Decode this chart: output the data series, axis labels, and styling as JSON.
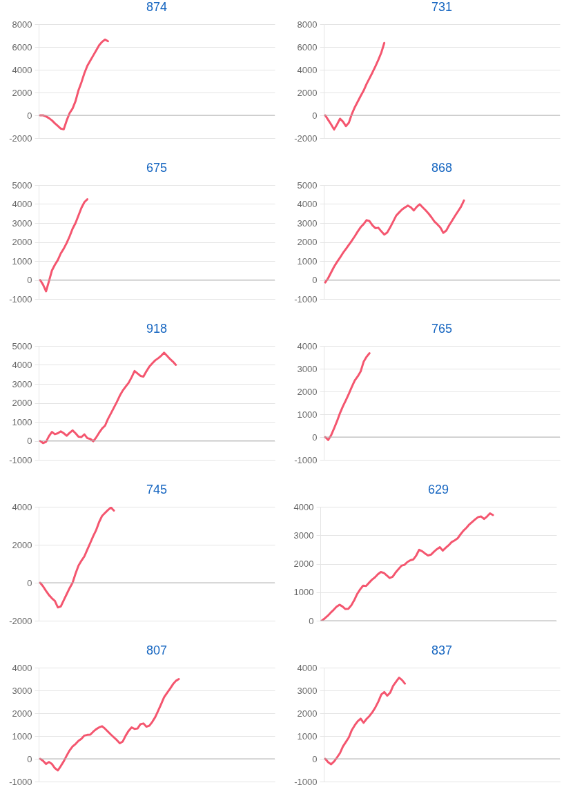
{
  "chart_data": [
    {
      "type": "line",
      "title": "874",
      "grid": "y",
      "ylim": [
        -2000,
        8000
      ],
      "yticks": [
        -2000,
        0,
        2000,
        4000,
        6000,
        8000
      ],
      "ref_lines": [
        {
          "axis": "y",
          "value": 0,
          "color": "#b4b4b4"
        }
      ],
      "categories": [
        null,
        null,
        null,
        null,
        null,
        null,
        null,
        null,
        null,
        null,
        null,
        null,
        null,
        null,
        null,
        null,
        null,
        null,
        null,
        null,
        null,
        null,
        null,
        null,
        null,
        null,
        null,
        null,
        null,
        null,
        null,
        null,
        null,
        null,
        null,
        null,
        null,
        null,
        null,
        null,
        null,
        null,
        null,
        null,
        null,
        null,
        null,
        null,
        null,
        null,
        null,
        null,
        null,
        null,
        null,
        null,
        null,
        null,
        null,
        null,
        null,
        null,
        null,
        null,
        null,
        null,
        null,
        null,
        null,
        null,
        null,
        null,
        null,
        null,
        null,
        null,
        null,
        null,
        null,
        null
      ],
      "series": [
        {
          "color": "#f4566f",
          "values": [
            0,
            0,
            -100,
            -250,
            -450,
            -700,
            -930,
            -1170,
            -1230,
            -450,
            200,
            600,
            1250,
            2200,
            2900,
            3700,
            4350,
            4800,
            5250,
            5700,
            6150,
            6450,
            6650,
            6500,
            null,
            null,
            null,
            null,
            null,
            null,
            null,
            null,
            null,
            null,
            null,
            null,
            null,
            null,
            null,
            null,
            null,
            null,
            null,
            null,
            null,
            null,
            null,
            null,
            null,
            null,
            null,
            null,
            null,
            null,
            null,
            null,
            null,
            null,
            null,
            null,
            null,
            null,
            null,
            null,
            null,
            null,
            null,
            null,
            null,
            null,
            null,
            null,
            null,
            null,
            null,
            null,
            null,
            null,
            null,
            null
          ]
        }
      ]
    },
    {
      "type": "line",
      "title": "731",
      "grid": "y",
      "ylim": [
        -2000,
        8000
      ],
      "yticks": [
        -2000,
        0,
        2000,
        4000,
        6000,
        8000
      ],
      "ref_lines": [
        {
          "axis": "y",
          "value": 0,
          "color": "#b4b4b4"
        }
      ],
      "categories": [
        null,
        null,
        null,
        null,
        null,
        null,
        null,
        null,
        null,
        null,
        null,
        null,
        null,
        null,
        null,
        null,
        null,
        null,
        null,
        null,
        null,
        null,
        null,
        null,
        null,
        null,
        null,
        null,
        null,
        null,
        null,
        null,
        null,
        null,
        null,
        null,
        null,
        null,
        null,
        null,
        null,
        null,
        null,
        null,
        null,
        null,
        null,
        null,
        null,
        null,
        null,
        null,
        null,
        null,
        null,
        null,
        null,
        null,
        null,
        null,
        null,
        null,
        null,
        null,
        null,
        null,
        null,
        null,
        null,
        null,
        null,
        null,
        null,
        null,
        null,
        null,
        null,
        null,
        null,
        null
      ],
      "series": [
        {
          "color": "#f4566f",
          "values": [
            0,
            -400,
            -800,
            -1250,
            -800,
            -300,
            -550,
            -950,
            -650,
            100,
            700,
            1200,
            1700,
            2160,
            2750,
            3250,
            3760,
            4300,
            4870,
            5500,
            6350,
            null,
            null,
            null,
            null,
            null,
            null,
            null,
            null,
            null,
            null,
            null,
            null,
            null,
            null,
            null,
            null,
            null,
            null,
            null,
            null,
            null,
            null,
            null,
            null,
            null,
            null,
            null,
            null,
            null,
            null,
            null,
            null,
            null,
            null,
            null,
            null,
            null,
            null,
            null,
            null,
            null,
            null,
            null,
            null,
            null,
            null,
            null,
            null,
            null,
            null,
            null,
            null,
            null,
            null,
            null,
            null,
            null,
            null,
            null
          ]
        }
      ]
    },
    {
      "type": "line",
      "title": "675",
      "grid": "y",
      "ylim": [
        -1000,
        5000
      ],
      "yticks": [
        -1000,
        0,
        1000,
        2000,
        3000,
        4000,
        5000
      ],
      "ref_lines": [
        {
          "axis": "y",
          "value": 0,
          "color": "#b4b4b4"
        }
      ],
      "categories": [
        null,
        null,
        null,
        null,
        null,
        null,
        null,
        null,
        null,
        null,
        null,
        null,
        null,
        null,
        null,
        null,
        null,
        null,
        null,
        null,
        null,
        null,
        null,
        null,
        null,
        null,
        null,
        null,
        null,
        null,
        null,
        null,
        null,
        null,
        null,
        null,
        null,
        null,
        null,
        null,
        null,
        null,
        null,
        null,
        null,
        null,
        null,
        null,
        null,
        null,
        null,
        null,
        null,
        null,
        null,
        null,
        null,
        null,
        null,
        null,
        null,
        null,
        null,
        null,
        null,
        null,
        null,
        null,
        null,
        null,
        null,
        null,
        null,
        null,
        null,
        null,
        null,
        null,
        null,
        null
      ],
      "series": [
        {
          "color": "#f4566f",
          "values": [
            0,
            -250,
            -600,
            -60,
            500,
            800,
            1050,
            1400,
            1650,
            1950,
            2300,
            2700,
            3000,
            3400,
            3800,
            4100,
            4250,
            null,
            null,
            null,
            null,
            null,
            null,
            null,
            null,
            null,
            null,
            null,
            null,
            null,
            null,
            null,
            null,
            null,
            null,
            null,
            null,
            null,
            null,
            null,
            null,
            null,
            null,
            null,
            null,
            null,
            null,
            null,
            null,
            null,
            null,
            null,
            null,
            null,
            null,
            null,
            null,
            null,
            null,
            null,
            null,
            null,
            null,
            null,
            null,
            null,
            null,
            null,
            null,
            null,
            null,
            null,
            null,
            null,
            null,
            null,
            null,
            null,
            null,
            null
          ]
        }
      ]
    },
    {
      "type": "line",
      "title": "868",
      "grid": "y",
      "ylim": [
        -1000,
        5000
      ],
      "yticks": [
        -1000,
        0,
        1000,
        2000,
        3000,
        4000,
        5000
      ],
      "ref_lines": [
        {
          "axis": "y",
          "value": 0,
          "color": "#b4b4b4"
        }
      ],
      "categories": [
        null,
        null,
        null,
        null,
        null,
        null,
        null,
        null,
        null,
        null,
        null,
        null,
        null,
        null,
        null,
        null,
        null,
        null,
        null,
        null,
        null,
        null,
        null,
        null,
        null,
        null,
        null,
        null,
        null,
        null,
        null,
        null,
        null,
        null,
        null,
        null,
        null,
        null,
        null,
        null,
        null,
        null,
        null,
        null,
        null,
        null,
        null,
        null,
        null,
        null,
        null,
        null,
        null,
        null,
        null,
        null,
        null,
        null,
        null,
        null,
        null,
        null,
        null,
        null,
        null,
        null,
        null,
        null,
        null,
        null,
        null,
        null,
        null,
        null,
        null,
        null,
        null,
        null,
        null,
        null
      ],
      "series": [
        {
          "color": "#f4566f",
          "values": [
            -130,
            100,
            400,
            700,
            950,
            1180,
            1420,
            1630,
            1850,
            2070,
            2300,
            2550,
            2780,
            2940,
            3150,
            3100,
            2880,
            2730,
            2750,
            2560,
            2390,
            2500,
            2770,
            3070,
            3380,
            3550,
            3710,
            3820,
            3920,
            3830,
            3660,
            3850,
            3990,
            3830,
            3670,
            3500,
            3300,
            3080,
            2930,
            2760,
            2480,
            2600,
            2880,
            3130,
            3380,
            3620,
            3860,
            4190,
            null,
            null,
            null,
            null,
            null,
            null,
            null,
            null,
            null,
            null,
            null,
            null,
            null,
            null,
            null,
            null,
            null,
            null,
            null,
            null,
            null,
            null,
            null,
            null,
            null,
            null,
            null,
            null,
            null,
            null,
            null,
            null
          ]
        }
      ]
    },
    {
      "type": "line",
      "title": "918",
      "grid": "y",
      "ylim": [
        -1000,
        5000
      ],
      "yticks": [
        -1000,
        0,
        1000,
        2000,
        3000,
        4000,
        5000
      ],
      "ref_lines": [
        {
          "axis": "y",
          "value": 0,
          "color": "#b4b4b4"
        }
      ],
      "categories": [
        null,
        null,
        null,
        null,
        null,
        null,
        null,
        null,
        null,
        null,
        null,
        null,
        null,
        null,
        null,
        null,
        null,
        null,
        null,
        null,
        null,
        null,
        null,
        null,
        null,
        null,
        null,
        null,
        null,
        null,
        null,
        null,
        null,
        null,
        null,
        null,
        null,
        null,
        null,
        null,
        null,
        null,
        null,
        null,
        null,
        null,
        null,
        null,
        null,
        null,
        null,
        null,
        null,
        null,
        null,
        null,
        null,
        null,
        null,
        null,
        null,
        null,
        null,
        null,
        null,
        null,
        null,
        null,
        null,
        null,
        null,
        null,
        null,
        null,
        null,
        null,
        null,
        null,
        null,
        null
      ],
      "series": [
        {
          "color": "#f4566f",
          "values": [
            0,
            -120,
            -50,
            250,
            470,
            350,
            400,
            500,
            400,
            270,
            420,
            550,
            400,
            220,
            200,
            340,
            140,
            100,
            -20,
            180,
            430,
            650,
            800,
            1160,
            1450,
            1750,
            2050,
            2380,
            2650,
            2860,
            3060,
            3350,
            3680,
            3550,
            3420,
            3380,
            3660,
            3910,
            4080,
            4240,
            4350,
            4480,
            4640,
            4480,
            4310,
            4170,
            4000,
            null,
            null,
            null,
            null,
            null,
            null,
            null,
            null,
            null,
            null,
            null,
            null,
            null,
            null,
            null,
            null,
            null,
            null,
            null,
            null,
            null,
            null,
            null,
            null,
            null,
            null,
            null,
            null,
            null,
            null,
            null,
            null,
            null
          ]
        }
      ]
    },
    {
      "type": "line",
      "title": "765",
      "grid": "y",
      "ylim": [
        -1000,
        4000
      ],
      "yticks": [
        -1000,
        0,
        1000,
        2000,
        3000,
        4000
      ],
      "ref_lines": [
        {
          "axis": "y",
          "value": 0,
          "color": "#b4b4b4"
        }
      ],
      "categories": [
        null,
        null,
        null,
        null,
        null,
        null,
        null,
        null,
        null,
        null,
        null,
        null,
        null,
        null,
        null,
        null,
        null,
        null,
        null,
        null,
        null,
        null,
        null,
        null,
        null,
        null,
        null,
        null,
        null,
        null,
        null,
        null,
        null,
        null,
        null,
        null,
        null,
        null,
        null,
        null,
        null,
        null,
        null,
        null,
        null,
        null,
        null,
        null,
        null,
        null,
        null,
        null,
        null,
        null,
        null,
        null,
        null,
        null,
        null,
        null,
        null,
        null,
        null,
        null,
        null,
        null,
        null,
        null,
        null,
        null,
        null,
        null,
        null,
        null,
        null,
        null,
        null,
        null,
        null,
        null
      ],
      "series": [
        {
          "color": "#f4566f",
          "values": [
            0,
            -130,
            80,
            380,
            700,
            1050,
            1350,
            1620,
            1900,
            2200,
            2480,
            2660,
            2880,
            3300,
            3520,
            3680,
            null,
            null,
            null,
            null,
            null,
            null,
            null,
            null,
            null,
            null,
            null,
            null,
            null,
            null,
            null,
            null,
            null,
            null,
            null,
            null,
            null,
            null,
            null,
            null,
            null,
            null,
            null,
            null,
            null,
            null,
            null,
            null,
            null,
            null,
            null,
            null,
            null,
            null,
            null,
            null,
            null,
            null,
            null,
            null,
            null,
            null,
            null,
            null,
            null,
            null,
            null,
            null,
            null,
            null,
            null,
            null,
            null,
            null,
            null,
            null,
            null,
            null,
            null,
            null
          ]
        }
      ]
    },
    {
      "type": "line",
      "title": "745",
      "grid": "y",
      "ylim": [
        -2000,
        4000
      ],
      "yticks": [
        -2000,
        0,
        2000,
        4000
      ],
      "ref_lines": [
        {
          "axis": "y",
          "value": 0,
          "color": "#b4b4b4"
        }
      ],
      "categories": [
        null,
        null,
        null,
        null,
        null,
        null,
        null,
        null,
        null,
        null,
        null,
        null,
        null,
        null,
        null,
        null,
        null,
        null,
        null,
        null,
        null,
        null,
        null,
        null,
        null,
        null,
        null,
        null,
        null,
        null,
        null,
        null,
        null,
        null,
        null,
        null,
        null,
        null,
        null,
        null,
        null,
        null,
        null,
        null,
        null,
        null,
        null,
        null,
        null,
        null,
        null,
        null,
        null,
        null,
        null,
        null,
        null,
        null,
        null,
        null,
        null,
        null,
        null,
        null,
        null,
        null,
        null,
        null,
        null,
        null,
        null,
        null,
        null,
        null,
        null,
        null,
        null,
        null,
        null,
        null
      ],
      "series": [
        {
          "color": "#f4566f",
          "values": [
            0,
            -190,
            -430,
            -650,
            -820,
            -960,
            -1300,
            -1250,
            -920,
            -600,
            -280,
            0,
            480,
            900,
            1160,
            1390,
            1750,
            2100,
            2460,
            2780,
            3200,
            3520,
            3680,
            3830,
            3960,
            3800,
            null,
            null,
            null,
            null,
            null,
            null,
            null,
            null,
            null,
            null,
            null,
            null,
            null,
            null,
            null,
            null,
            null,
            null,
            null,
            null,
            null,
            null,
            null,
            null,
            null,
            null,
            null,
            null,
            null,
            null,
            null,
            null,
            null,
            null,
            null,
            null,
            null,
            null,
            null,
            null,
            null,
            null,
            null,
            null,
            null,
            null,
            null,
            null,
            null,
            null,
            null,
            null,
            null,
            null
          ]
        }
      ]
    },
    {
      "type": "line",
      "title": "629",
      "grid": "y",
      "ylim": [
        0,
        4000
      ],
      "yticks": [
        0,
        1000,
        2000,
        3000,
        4000
      ],
      "ref_lines": [
        {
          "axis": "y",
          "value": 0,
          "color": "#b4b4b4"
        }
      ],
      "categories": [
        null,
        null,
        null,
        null,
        null,
        null,
        null,
        null,
        null,
        null,
        null,
        null,
        null,
        null,
        null,
        null,
        null,
        null,
        null,
        null,
        null,
        null,
        null,
        null,
        null,
        null,
        null,
        null,
        null,
        null,
        null,
        null,
        null,
        null,
        null,
        null,
        null,
        null,
        null,
        null,
        null,
        null,
        null,
        null,
        null,
        null,
        null,
        null,
        null,
        null,
        null,
        null,
        null,
        null,
        null,
        null,
        null,
        null,
        null,
        null,
        null,
        null,
        null,
        null,
        null,
        null,
        null,
        null,
        null,
        null,
        null,
        null,
        null,
        null,
        null,
        null,
        null,
        null,
        null,
        null
      ],
      "series": [
        {
          "color": "#f4566f",
          "values": [
            0,
            80,
            170,
            280,
            380,
            490,
            560,
            500,
            410,
            420,
            540,
            720,
            940,
            1100,
            1230,
            1220,
            1330,
            1440,
            1520,
            1630,
            1710,
            1680,
            1590,
            1500,
            1540,
            1690,
            1810,
            1930,
            1960,
            2060,
            2120,
            2150,
            2290,
            2490,
            2440,
            2360,
            2290,
            2320,
            2420,
            2510,
            2580,
            2460,
            2560,
            2650,
            2760,
            2820,
            2890,
            3030,
            3160,
            3260,
            3380,
            3470,
            3560,
            3640,
            3660,
            3570,
            3660,
            3770,
            3710,
            null,
            null,
            null,
            null,
            null,
            null,
            null,
            null,
            null,
            null,
            null,
            null,
            null,
            null,
            null,
            null,
            null,
            null,
            null,
            null,
            null
          ]
        }
      ]
    },
    {
      "type": "line",
      "title": "807",
      "grid": "y",
      "ylim": [
        -1000,
        4000
      ],
      "yticks": [
        -1000,
        0,
        1000,
        2000,
        3000,
        4000
      ],
      "ref_lines": [
        {
          "axis": "y",
          "value": 0,
          "color": "#b4b4b4"
        }
      ],
      "categories": [
        null,
        null,
        null,
        null,
        null,
        null,
        null,
        null,
        null,
        null,
        null,
        null,
        null,
        null,
        null,
        null,
        null,
        null,
        null,
        null,
        null,
        null,
        null,
        null,
        null,
        null,
        null,
        null,
        null,
        null,
        null,
        null,
        null,
        null,
        null,
        null,
        null,
        null,
        null,
        null,
        null,
        null,
        null,
        null,
        null,
        null,
        null,
        null,
        null,
        null,
        null,
        null,
        null,
        null,
        null,
        null,
        null,
        null,
        null,
        null,
        null,
        null,
        null,
        null,
        null,
        null,
        null,
        null,
        null,
        null,
        null,
        null,
        null,
        null,
        null,
        null,
        null,
        null,
        null,
        null
      ],
      "series": [
        {
          "color": "#f4566f",
          "values": [
            0,
            -90,
            -230,
            -140,
            -230,
            -410,
            -510,
            -320,
            -110,
            140,
            370,
            540,
            650,
            790,
            880,
            1020,
            1050,
            1060,
            1190,
            1300,
            1380,
            1430,
            1320,
            1190,
            1060,
            940,
            820,
            680,
            760,
            1020,
            1230,
            1380,
            1310,
            1330,
            1520,
            1550,
            1410,
            1450,
            1620,
            1830,
            2110,
            2400,
            2700,
            2890,
            3070,
            3270,
            3420,
            3500,
            null,
            null,
            null,
            null,
            null,
            null,
            null,
            null,
            null,
            null,
            null,
            null,
            null,
            null,
            null,
            null,
            null,
            null,
            null,
            null,
            null,
            null,
            null,
            null,
            null,
            null,
            null,
            null,
            null,
            null,
            null,
            null
          ]
        }
      ]
    },
    {
      "type": "line",
      "title": "837",
      "grid": "y",
      "ylim": [
        -1000,
        4000
      ],
      "yticks": [
        -1000,
        0,
        1000,
        2000,
        3000,
        4000
      ],
      "ref_lines": [
        {
          "axis": "y",
          "value": 0,
          "color": "#b4b4b4"
        }
      ],
      "categories": [
        null,
        null,
        null,
        null,
        null,
        null,
        null,
        null,
        null,
        null,
        null,
        null,
        null,
        null,
        null,
        null,
        null,
        null,
        null,
        null,
        null,
        null,
        null,
        null,
        null,
        null,
        null,
        null,
        null,
        null,
        null,
        null,
        null,
        null,
        null,
        null,
        null,
        null,
        null,
        null,
        null,
        null,
        null,
        null,
        null,
        null,
        null,
        null,
        null,
        null,
        null,
        null,
        null,
        null,
        null,
        null,
        null,
        null,
        null,
        null,
        null,
        null,
        null,
        null,
        null,
        null,
        null,
        null,
        null,
        null,
        null,
        null,
        null,
        null,
        null,
        null,
        null,
        null,
        null,
        null
      ],
      "series": [
        {
          "color": "#f4566f",
          "values": [
            0,
            -150,
            -240,
            -120,
            60,
            250,
            540,
            740,
            940,
            1260,
            1470,
            1650,
            1760,
            1580,
            1750,
            1880,
            2050,
            2260,
            2510,
            2820,
            2930,
            2770,
            2900,
            3200,
            3380,
            3560,
            3460,
            3300,
            null,
            null,
            null,
            null,
            null,
            null,
            null,
            null,
            null,
            null,
            null,
            null,
            null,
            null,
            null,
            null,
            null,
            null,
            null,
            null,
            null,
            null,
            null,
            null,
            null,
            null,
            null,
            null,
            null,
            null,
            null,
            null,
            null,
            null,
            null,
            null,
            null,
            null,
            null,
            null,
            null,
            null,
            null,
            null,
            null,
            null,
            null,
            null,
            null,
            null,
            null,
            null
          ]
        }
      ]
    }
  ]
}
